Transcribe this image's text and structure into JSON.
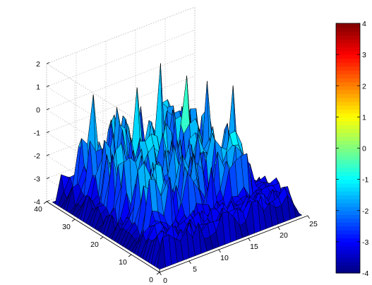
{
  "chart_data": {
    "type": "surface3d",
    "x_axis": {
      "range": [
        0,
        25
      ],
      "ticks": [
        "0",
        "5",
        "10",
        "15",
        "20",
        "25"
      ]
    },
    "y_axis": {
      "range": [
        0,
        40
      ],
      "ticks": [
        "0",
        "10",
        "20",
        "30",
        "40"
      ]
    },
    "z_axis": {
      "range": [
        -4,
        2
      ],
      "ticks": [
        "-4",
        "-3",
        "-2",
        "-1",
        "0",
        "1",
        "2"
      ]
    },
    "grid": true,
    "baseline": -4,
    "grid_size": {
      "x": 24,
      "y": 38
    },
    "approx_peaks": [
      {
        "x": 5,
        "y": 36,
        "z": 0.5
      },
      {
        "x": 8,
        "y": 34,
        "z": -0.2
      },
      {
        "x": 10,
        "y": 30,
        "z": 0.7
      },
      {
        "x": 14,
        "y": 28,
        "z": 1.6
      },
      {
        "x": 17,
        "y": 25,
        "z": 1.0
      },
      {
        "x": 19,
        "y": 22,
        "z": 0.8
      },
      {
        "x": 21,
        "y": 17,
        "z": 0.8
      },
      {
        "x": 12,
        "y": 24,
        "z": -0.6
      },
      {
        "x": 9,
        "y": 18,
        "z": -1.0
      },
      {
        "x": 6,
        "y": 30,
        "z": -0.9
      }
    ],
    "colorbar": {
      "colormap": "jet",
      "range": [
        -4,
        4
      ],
      "ticks": [
        "-4",
        "-3",
        "-2",
        "-1",
        "0",
        "1",
        "2",
        "3",
        "4"
      ]
    },
    "colors": {
      "axis": "#000000",
      "grid": "#bbbbbb",
      "edge": "#000000"
    }
  }
}
